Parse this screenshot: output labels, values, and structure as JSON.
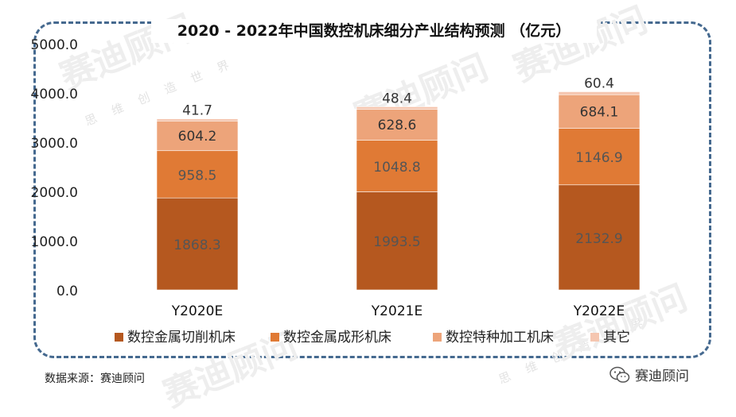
{
  "title": "2020 - 2022年中国数控机床细分产业结构预测 （亿元）",
  "source": "数据来源：赛迪顾问",
  "brand": {
    "name": "赛迪顾问",
    "watermark_slogan": "思 维 创 造 世 界"
  },
  "colors": {
    "series1": "#b5581f",
    "series2": "#e07a35",
    "series3": "#eda47a",
    "series4": "#f5c6b0",
    "frame": "#45698f"
  },
  "chart_data": {
    "type": "bar",
    "stacked": true,
    "title": "2020 - 2022年中国数控机床细分产业结构预测 （亿元）",
    "categories": [
      "Y2020E",
      "Y2021E",
      "Y2022E"
    ],
    "series": [
      {
        "name": "数控金属切削机床",
        "values": [
          1868.3,
          1993.5,
          2132.9
        ]
      },
      {
        "name": "数控金属成形机床",
        "values": [
          958.5,
          1048.8,
          1146.9
        ]
      },
      {
        "name": "数控特种加工机床",
        "values": [
          604.2,
          628.6,
          684.1
        ]
      },
      {
        "name": "其它",
        "values": [
          41.7,
          48.4,
          60.4
        ]
      }
    ],
    "value_labels": [
      [
        "1868.3",
        "1993.5",
        "2132.9"
      ],
      [
        "958.5",
        "1048.8",
        "1146.9"
      ],
      [
        "604.2",
        "628.6",
        "684.1"
      ],
      [
        "41.7",
        "48.4",
        "60.4"
      ]
    ],
    "ylim": [
      0,
      5000
    ],
    "yticks": [
      0,
      1000,
      2000,
      3000,
      4000,
      5000
    ],
    "ytick_labels": [
      "0.0",
      "1000.0",
      "2000.0",
      "3000.0",
      "4000.0",
      "5000.0"
    ],
    "grid": false,
    "legend_position": "bottom"
  }
}
